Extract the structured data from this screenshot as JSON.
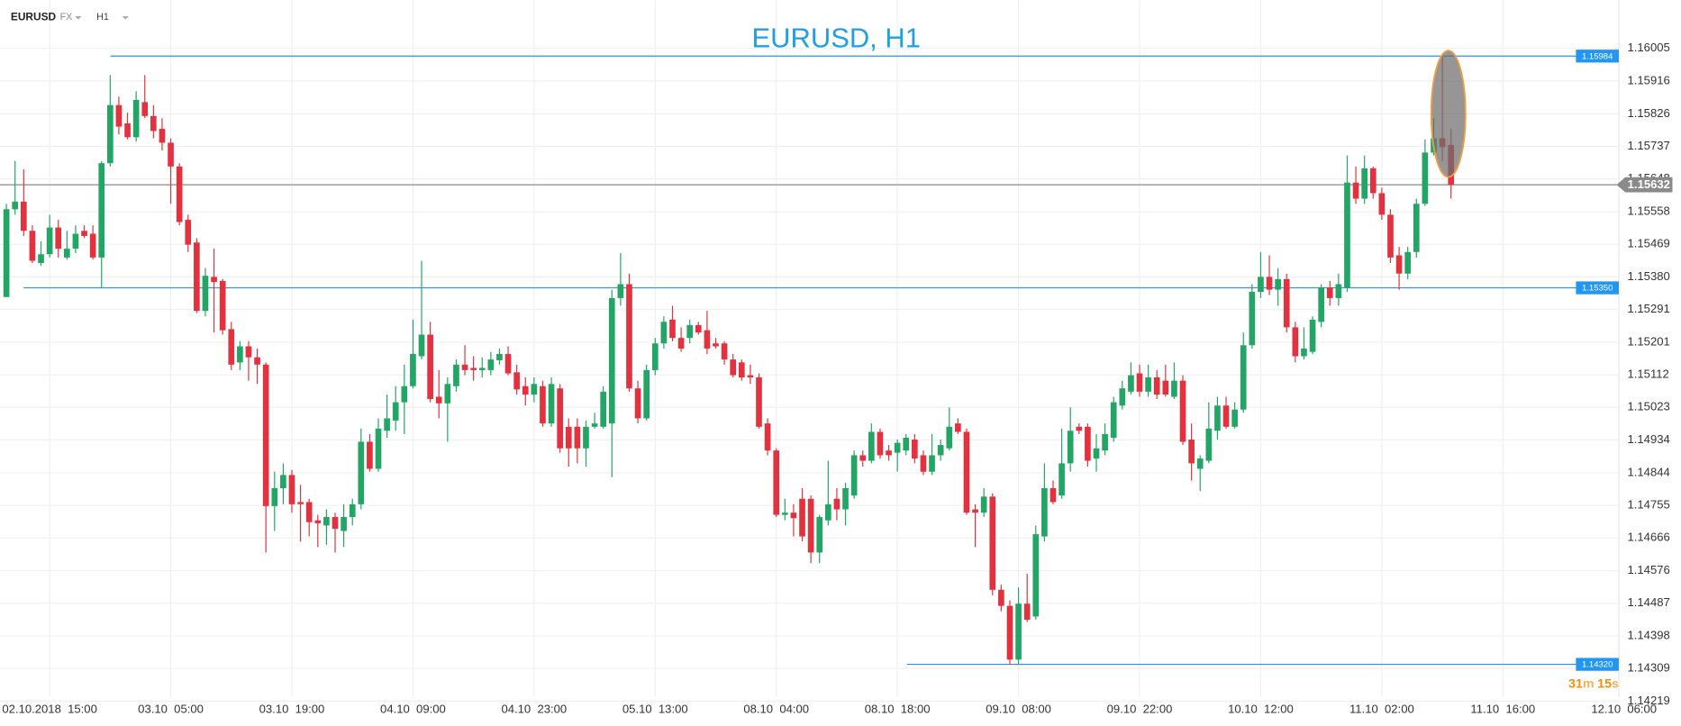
{
  "header": {
    "symbol": "EURUSD",
    "market": "FX",
    "timeframe": "H1"
  },
  "chart_data": {
    "type": "candlestick",
    "title": "EURUSD, H1",
    "colors": {
      "up": "#22a565",
      "down": "#e3323f",
      "level": "#2196f3",
      "current": "#8a8a8a"
    },
    "grid": true,
    "xlim": [
      -0.74,
      186.4
    ],
    "xticks": [
      {
        "value": 5,
        "label": "02.10.2018  15:00"
      },
      {
        "value": 19,
        "label": "03.10  05:00"
      },
      {
        "value": 33,
        "label": "03.10  19:00"
      },
      {
        "value": 47,
        "label": "04.10  09:00"
      },
      {
        "value": 61,
        "label": "04.10  23:00"
      },
      {
        "value": 75,
        "label": "05.10  13:00"
      },
      {
        "value": 89,
        "label": "08.10  04:00"
      },
      {
        "value": 103,
        "label": "08.10  18:00"
      },
      {
        "value": 117,
        "label": "09.10  08:00"
      },
      {
        "value": 131,
        "label": "09.10  22:00"
      },
      {
        "value": 145,
        "label": "10.10  12:00"
      },
      {
        "value": 159,
        "label": "11.10  02:00"
      },
      {
        "value": 173,
        "label": "11.10  16:00"
      },
      {
        "value": 187,
        "label": "12.10  06:00"
      }
    ],
    "ylim": [
      1.14231,
      1.16137
    ],
    "yticks": [
      1.16005,
      1.15916,
      1.15826,
      1.15737,
      1.15648,
      1.15558,
      1.15469,
      {
        "value": 1.1538,
        "label": "1.15380"
      },
      1.15291,
      1.15201,
      1.15112,
      1.15023,
      1.14934,
      1.14844,
      1.14755,
      1.14666,
      1.14576,
      1.14487,
      1.14398,
      1.14309,
      1.14219
    ],
    "levels": [
      1.15984,
      {
        "value": 1.1535,
        "label": "1.15350"
      },
      {
        "value": 1.1432,
        "label": "1.14320"
      }
    ],
    "current_price": 1.15632,
    "countdown": [
      "31",
      "m",
      "15",
      "s"
    ],
    "open": [
      1.15325,
      1.15565,
      1.15586,
      1.15506,
      1.15418,
      1.15442,
      1.15515,
      1.15433,
      1.15457,
      1.15506,
      1.15498,
      1.15433,
      1.15691,
      1.1585,
      1.158,
      1.15762,
      1.15858,
      1.1582,
      1.15785,
      1.15747,
      1.15682,
      1.15536,
      1.15474,
      1.15287,
      1.1538,
      1.15369,
      1.15237,
      1.15146,
      1.1519,
      1.1516,
      1.1514,
      1.14753,
      1.14802,
      1.14838,
      1.14764,
      1.14764,
      1.14714,
      1.147,
      1.14723,
      1.14685,
      1.14723,
      1.14758,
      1.14929,
      1.14855,
      1.14959,
      1.14987,
      1.15037,
      1.15081,
      1.15163,
      1.15222,
      1.15052,
      1.15034,
      1.15081,
      1.1514,
      1.15131,
      1.15125,
      1.15125,
      1.15152,
      1.15169,
      1.15119,
      1.15081,
      1.15058,
      1.15081,
      1.14979,
      1.15075,
      1.1497,
      1.1497,
      1.14911,
      1.1497,
      1.1497,
      1.14979,
      1.15322,
      1.1536,
      1.15075,
      1.14993,
      1.15125,
      1.15198,
      1.15263,
      1.15213,
      1.15213,
      1.15248,
      1.15234,
      1.15198,
      1.15198,
      1.15154,
      1.15146,
      1.15111,
      1.15105,
      1.14979,
      1.14905,
      1.14729,
      1.14735,
      1.14773,
      1.14773,
      1.14626,
      1.14714,
      1.14773,
      1.14744,
      1.14782,
      1.14892,
      1.14877,
      1.14956,
      1.14905,
      1.14899,
      1.14905,
      1.14935,
      1.14892,
      1.14847,
      1.14892,
      1.14911,
      1.14979,
      1.14956,
      1.14744,
      1.14735,
      1.14779,
      1.14524,
      1.1448,
      1.14333,
      1.14486,
      1.14451,
      1.1467,
      1.14802,
      1.14782,
      1.1487,
      1.1497,
      1.1497,
      1.14883,
      1.14905,
      1.1494,
      1.15028,
      1.15066,
      1.15116,
      1.15066,
      1.15105,
      1.15096,
      1.15052,
      1.15096,
      1.14935,
      1.14855,
      1.14877,
      1.14959,
      1.15028,
      1.1497,
      1.15017,
      1.15193,
      1.15339,
      1.1538,
      1.15345,
      1.15374,
      1.15242,
      1.15163,
      1.15175,
      1.15257,
      1.15351,
      1.15322,
      1.15351,
      1.15638,
      1.15594,
      1.15677,
      1.15609,
      1.1555,
      1.15439,
      1.15389,
      1.15448,
      1.1558,
      1.1572,
      1.15759,
      1.15741
    ],
    "high": [
      1.1558,
      1.15697,
      1.15674,
      1.15521,
      1.15477,
      1.1555,
      1.15536,
      1.15506,
      1.15521,
      1.15521,
      1.15521,
      1.15697,
      1.15932,
      1.15873,
      1.15829,
      1.15888,
      1.15932,
      1.1585,
      1.15814,
      1.15759,
      1.15691,
      1.1555,
      1.15486,
      1.15404,
      1.15457,
      1.15374,
      1.15257,
      1.15204,
      1.15204,
      1.15184,
      1.15146,
      1.14847,
      1.1487,
      1.14852,
      1.14811,
      1.14773,
      1.14729,
      1.14744,
      1.14735,
      1.14758,
      1.14773,
      1.14965,
      1.1495,
      1.14993,
      1.15058,
      1.15081,
      1.1514,
      1.15263,
      1.15424,
      1.15257,
      1.15125,
      1.15105,
      1.15154,
      1.15193,
      1.15163,
      1.1516,
      1.15175,
      1.15184,
      1.1519,
      1.1514,
      1.15105,
      1.15105,
      1.15096,
      1.15105,
      1.15087,
      1.14993,
      1.14993,
      1.14987,
      1.15008,
      1.15081,
      1.15345,
      1.15445,
      1.15389,
      1.15096,
      1.1514,
      1.15213,
      1.15272,
      1.15301,
      1.15242,
      1.15263,
      1.15257,
      1.15287,
      1.15213,
      1.15204,
      1.15169,
      1.15154,
      1.1514,
      1.15116,
      1.14993,
      1.14911,
      1.14773,
      1.14758,
      1.14802,
      1.14782,
      1.14729,
      1.14877,
      1.14802,
      1.14817,
      1.14905,
      1.14905,
      1.14979,
      1.14965,
      1.1492,
      1.14935,
      1.1495,
      1.1495,
      1.14905,
      1.1495,
      1.14935,
      1.15023,
      1.14993,
      1.14965,
      1.14758,
      1.14802,
      1.14788,
      1.14538,
      1.14495,
      1.1453,
      1.14568,
      1.147,
      1.1487,
      1.14823,
      1.14965,
      1.15023,
      1.14979,
      1.14979,
      1.1495,
      1.14979,
      1.15052,
      1.15096,
      1.15146,
      1.1514,
      1.1514,
      1.15125,
      1.1514,
      1.15146,
      1.15111,
      1.14979,
      1.14892,
      1.15037,
      1.15052,
      1.15052,
      1.15037,
      1.15228,
      1.1536,
      1.15448,
      1.15439,
      1.15404,
      1.15389,
      1.15257,
      1.15242,
      1.15272,
      1.1536,
      1.15369,
      1.15389,
      1.15712,
      1.15682,
      1.15712,
      1.15682,
      1.15624,
      1.15565,
      1.15462,
      1.15462,
      1.15594,
      1.15756,
      1.15814,
      1.15984,
      1.15785
    ],
    "low": [
      1.15325,
      1.1555,
      1.15492,
      1.15418,
      1.1541,
      1.15433,
      1.15433,
      1.15427,
      1.15445,
      1.15486,
      1.15427,
      1.15351,
      1.15682,
      1.1577,
      1.15756,
      1.1575,
      1.15814,
      1.15759,
      1.15726,
      1.1558,
      1.15521,
      1.15448,
      1.15281,
      1.15272,
      1.15228,
      1.15222,
      1.15125,
      1.15125,
      1.15096,
      1.15087,
      1.14626,
      1.14685,
      1.14758,
      1.14735,
      1.14656,
      1.1467,
      1.14641,
      1.14647,
      1.14626,
      1.14641,
      1.147,
      1.14744,
      1.14847,
      1.14847,
      1.1494,
      1.14959,
      1.1495,
      1.15075,
      1.15154,
      1.15037,
      1.14993,
      1.14929,
      1.15066,
      1.15111,
      1.15096,
      1.15105,
      1.15111,
      1.1514,
      1.15111,
      1.15058,
      1.15028,
      1.15037,
      1.1497,
      1.1497,
      1.14899,
      1.14861,
      1.1487,
      1.14861,
      1.14965,
      1.14965,
      1.14832,
      1.15301,
      1.15066,
      1.14979,
      1.14987,
      1.15111,
      1.15184,
      1.15204,
      1.15175,
      1.15198,
      1.15222,
      1.15169,
      1.15184,
      1.1514,
      1.15105,
      1.15096,
      1.15087,
      1.14965,
      1.14892,
      1.14723,
      1.14714,
      1.1467,
      1.14656,
      1.14597,
      1.14597,
      1.147,
      1.14714,
      1.147,
      1.14773,
      1.14861,
      1.1487,
      1.14883,
      1.14877,
      1.14847,
      1.14892,
      1.1487,
      1.14838,
      1.14838,
      1.14877,
      1.14905,
      1.1495,
      1.14729,
      1.14641,
      1.14723,
      1.14509,
      1.14465,
      1.14319,
      1.14319,
      1.14436,
      1.14442,
      1.14656,
      1.14758,
      1.14773,
      1.14847,
      1.1495,
      1.14861,
      1.14847,
      1.14892,
      1.14929,
      1.15017,
      1.15058,
      1.15052,
      1.15052,
      1.15046,
      1.15052,
      1.15046,
      1.1492,
      1.14823,
      1.14794,
      1.1487,
      1.14935,
      1.14965,
      1.14965,
      1.15008,
      1.15184,
      1.15322,
      1.1533,
      1.15301,
      1.15228,
      1.15146,
      1.15154,
      1.15169,
      1.15242,
      1.15301,
      1.15301,
      1.15339,
      1.1558,
      1.1558,
      1.15594,
      1.15536,
      1.15418,
      1.15345,
      1.15374,
      1.15433,
      1.15574,
      1.15712,
      1.15697,
      1.15594
    ],
    "close": [
      1.15565,
      1.15586,
      1.15506,
      1.15424,
      1.15442,
      1.15515,
      1.15457,
      1.15457,
      1.15498,
      1.15492,
      1.15433,
      1.15691,
      1.1585,
      1.15791,
      1.15762,
      1.15864,
      1.1582,
      1.15779,
      1.15747,
      1.15682,
      1.1553,
      1.15468,
      1.15287,
      1.15383,
      1.15366,
      1.15234,
      1.1514,
      1.1519,
      1.1516,
      1.1514,
      1.14753,
      1.14802,
      1.14838,
      1.14758,
      1.14758,
      1.14709,
      1.14706,
      1.14723,
      1.14691,
      1.14723,
      1.14758,
      1.14929,
      1.14855,
      1.14965,
      1.14993,
      1.15037,
      1.15081,
      1.15169,
      1.15222,
      1.15046,
      1.15034,
      1.15087,
      1.1514,
      1.15125,
      1.15125,
      1.15131,
      1.15154,
      1.15169,
      1.15116,
      1.15072,
      1.15058,
      1.15087,
      1.14979,
      1.15087,
      1.14911,
      1.14911,
      1.14911,
      1.1497,
      1.14979,
      1.15066,
      1.15322,
      1.1536,
      1.15075,
      1.14993,
      1.15125,
      1.15198,
      1.15257,
      1.15213,
      1.15184,
      1.15248,
      1.15228,
      1.15184,
      1.1519,
      1.15154,
      1.15111,
      1.15105,
      1.15105,
      1.1497,
      1.14905,
      1.14729,
      1.14735,
      1.1472,
      1.1467,
      1.14626,
      1.14723,
      1.14758,
      1.14744,
      1.14802,
      1.14892,
      1.14877,
      1.14956,
      1.14892,
      1.14892,
      1.14926,
      1.1494,
      1.14883,
      1.14847,
      1.14892,
      1.1492,
      1.1497,
      1.14956,
      1.14735,
      1.14735,
      1.14779,
      1.14524,
      1.1448,
      1.14333,
      1.14486,
      1.14442,
      1.14676,
      1.14802,
      1.14764,
      1.1487,
      1.14959,
      1.14959,
      1.14877,
      1.14911,
      1.1495,
      1.15037,
      1.15075,
      1.15111,
      1.15066,
      1.15105,
      1.15058,
      1.15058,
      1.15096,
      1.14929,
      1.1487,
      1.14883,
      1.14965,
      1.15028,
      1.1497,
      1.15017,
      1.15193,
      1.15339,
      1.1538,
      1.15345,
      1.15374,
      1.15242,
      1.15163,
      1.15184,
      1.15263,
      1.15351,
      1.15322,
      1.1536,
      1.15638,
      1.15594,
      1.15677,
      1.15609,
      1.1555,
      1.15433,
      1.15389,
      1.15448,
      1.1558,
      1.1572,
      1.15759,
      1.15735,
      1.15632
    ]
  }
}
